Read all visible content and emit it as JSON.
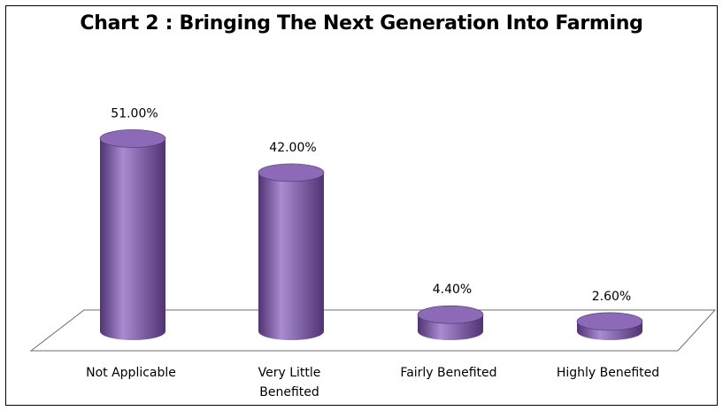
{
  "chart_data": {
    "type": "bar",
    "title": "Chart 2 : Bringing The Next Generation Into Farming",
    "categories": [
      [
        "Not Applicable"
      ],
      [
        "Very Little",
        "Benefited"
      ],
      [
        "Fairly Benefited"
      ],
      [
        "Highly Benefited"
      ]
    ],
    "values": [
      51.0,
      42.0,
      4.4,
      2.6
    ],
    "data_labels": [
      "51.00%",
      "42.00%",
      "4.40%",
      "2.60%"
    ],
    "ylim": [
      0,
      60
    ],
    "grid": false,
    "legend": "none",
    "bar_shape": "cylinder",
    "colors": {
      "bar_body": "#7d5aa8",
      "bar_highlight": "#a98bd1",
      "bar_shadow": "#4f3372",
      "bar_top": "#8c6ab8",
      "floor_stroke": "#6d6d6d"
    }
  }
}
